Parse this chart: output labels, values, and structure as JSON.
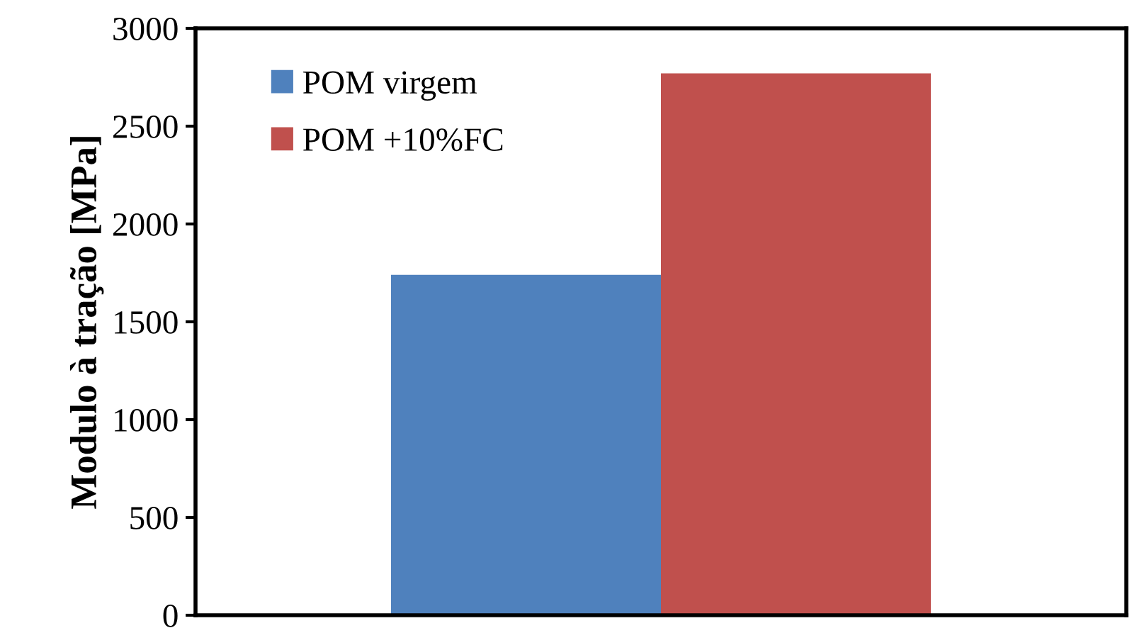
{
  "chart_data": {
    "type": "bar",
    "ylabel": "Modulo à tração [MPa]",
    "categories": [
      null
    ],
    "series": [
      {
        "name": "POM virgem",
        "color": "#4f81bd",
        "values": [
          1740
        ]
      },
      {
        "name": "POM +10%FC",
        "color": "#c0504d",
        "values": [
          2770
        ]
      }
    ],
    "ylim": [
      0,
      3000
    ],
    "yticks": [
      0,
      500,
      1000,
      1500,
      2000,
      2500,
      3000
    ],
    "grid": false,
    "legend": "top left"
  }
}
